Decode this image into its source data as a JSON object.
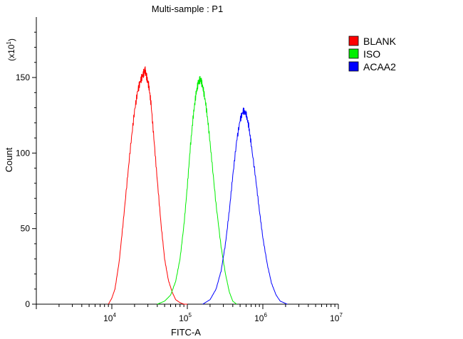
{
  "chart_data": {
    "type": "line",
    "title": "Multi-sample : P1",
    "xlabel": "FITC-A",
    "ylabel": "Count",
    "y_multiplier_label": "(x10",
    "y_multiplier_exp": "1",
    "x_scale": "log",
    "xlim": [
      1000,
      10000000
    ],
    "ylim": [
      0,
      190
    ],
    "x_ticks": [
      {
        "value": 10000,
        "base": "10",
        "exp": "4"
      },
      {
        "value": 100000,
        "base": "10",
        "exp": "5"
      },
      {
        "value": 1000000,
        "base": "10",
        "exp": "6"
      },
      {
        "value": 10000000,
        "base": "10",
        "exp": "7"
      }
    ],
    "y_ticks": [
      {
        "value": 0,
        "label": "0"
      },
      {
        "value": 50,
        "label": "50"
      },
      {
        "value": 100,
        "label": "100"
      },
      {
        "value": 150,
        "label": "150"
      }
    ],
    "grid": false,
    "legend_position": "top-right",
    "series": [
      {
        "name": "BLANK",
        "color": "#ff0000",
        "x": [
          9000,
          10000,
          11000,
          12500,
          14000,
          16000,
          18000,
          20000,
          22000,
          24000,
          26000,
          27500,
          29000,
          31000,
          33000,
          36000,
          40000,
          45000,
          50000,
          56000,
          63000,
          70000,
          80000,
          90000,
          100000
        ],
        "y": [
          0,
          4,
          10,
          28,
          52,
          82,
          108,
          128,
          141,
          148,
          152,
          155,
          150,
          144,
          133,
          110,
          82,
          52,
          30,
          16,
          8,
          3,
          1,
          0,
          0
        ]
      },
      {
        "name": "ISO",
        "color": "#00ee00",
        "x": [
          40000,
          50000,
          60000,
          70000,
          80000,
          90000,
          100000,
          110000,
          120000,
          130000,
          140000,
          150000,
          160000,
          175000,
          190000,
          210000,
          240000,
          280000,
          320000,
          360000,
          400000,
          450000
        ],
        "y": [
          0,
          2,
          6,
          15,
          30,
          52,
          78,
          105,
          125,
          139,
          147,
          149,
          144,
          133,
          118,
          96,
          66,
          38,
          20,
          8,
          2,
          0
        ]
      },
      {
        "name": "ACAA2",
        "color": "#0000ff",
        "x": [
          160000,
          200000,
          240000,
          280000,
          320000,
          360000,
          400000,
          450000,
          500000,
          550000,
          600000,
          650000,
          700000,
          800000,
          900000,
          1000000,
          1150000,
          1300000,
          1500000,
          1700000,
          1900000,
          2100000
        ],
        "y": [
          0,
          3,
          10,
          22,
          40,
          62,
          85,
          108,
          122,
          128,
          126,
          118,
          106,
          84,
          62,
          44,
          26,
          14,
          6,
          2,
          1,
          0
        ]
      }
    ]
  }
}
